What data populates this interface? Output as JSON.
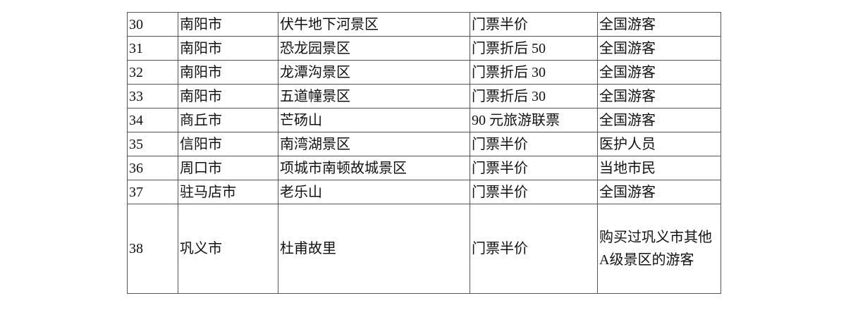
{
  "table": {
    "rows": [
      [
        "30",
        "南阳市",
        "伏牛地下河景区",
        "门票半价",
        "全国游客"
      ],
      [
        "31",
        "南阳市",
        "恐龙园景区",
        "门票折后 50",
        "全国游客"
      ],
      [
        "32",
        "南阳市",
        "龙潭沟景区",
        "门票折后 30",
        "全国游客"
      ],
      [
        "33",
        "南阳市",
        "五道幢景区",
        "门票折后 30",
        "全国游客"
      ],
      [
        "34",
        "商丘市",
        "芒砀山",
        "90 元旅游联票",
        "全国游客"
      ],
      [
        "35",
        "信阳市",
        "南湾湖景区",
        "门票半价",
        "医护人员"
      ],
      [
        "36",
        "周口市",
        "项城市南顿故城景区",
        "门票半价",
        "当地市民"
      ],
      [
        "37",
        "驻马店市",
        "老乐山",
        "门票半价",
        "全国游客"
      ],
      [
        "38",
        "巩义市",
        "杜甫故里",
        "门票半价",
        "购买过巩义市其他A级景区的游客"
      ]
    ]
  }
}
